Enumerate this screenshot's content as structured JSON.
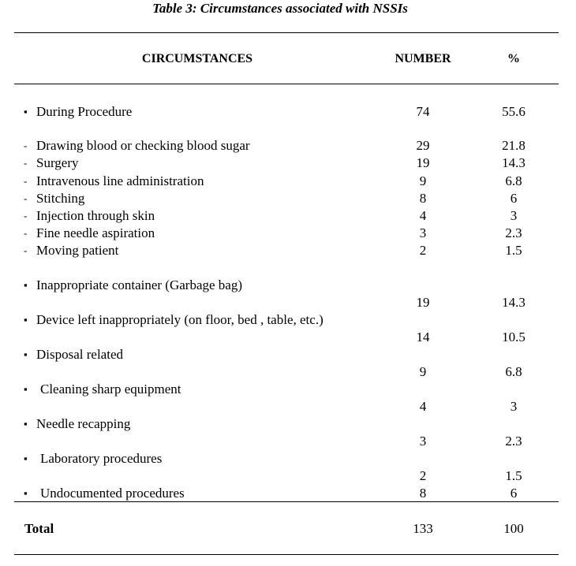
{
  "title": "Table 3:  Circumstances associated with NSSIs",
  "table": {
    "header": [
      "CIRCUMSTANCES",
      "NUMBER",
      "%"
    ],
    "rows": [
      {
        "marker": "▪",
        "label": "During Procedure",
        "number": "74",
        "percent": "55.6"
      },
      {
        "marker": "-",
        "label": "Drawing blood or checking blood sugar",
        "number": "29",
        "percent": "21.8"
      },
      {
        "marker": "-",
        "label": "Surgery",
        "number": "19",
        "percent": "14.3"
      },
      {
        "marker": "-",
        "label": "Intravenous line administration",
        "number": "9",
        "percent": "6.8"
      },
      {
        "marker": "-",
        "label": "Stitching",
        "number": "8",
        "percent": "6"
      },
      {
        "marker": "-",
        "label": "Injection through skin",
        "number": "4",
        "percent": "3"
      },
      {
        "marker": "-",
        "label": "Fine needle aspiration",
        "number": "3",
        "percent": "2.3"
      },
      {
        "marker": "-",
        "label": "Moving patient",
        "number": "2",
        "percent": "1.5"
      },
      {
        "marker": "▪",
        "label": "Inappropriate container (Garbage bag)",
        "number": "19",
        "percent": "14.3"
      },
      {
        "marker": "▪",
        "label": "Device left inappropriately (on floor, bed , table, etc.)",
        "number": "14",
        "percent": "10.5"
      },
      {
        "marker": "▪",
        "label": "Disposal related",
        "number": "9",
        "percent": "6.8"
      },
      {
        "marker": "▪",
        "label": "Cleaning sharp equipment",
        "number": "4",
        "percent": "3"
      },
      {
        "marker": "▪",
        "label": "Needle recapping",
        "number": "3",
        "percent": "2.3"
      },
      {
        "marker": "▪",
        "label": "Laboratory procedures",
        "number": "2",
        "percent": "1.5"
      },
      {
        "marker": "▪",
        "label": "Undocumented procedures",
        "number": "8",
        "percent": "6"
      }
    ],
    "total": {
      "label": "Total",
      "number": "133",
      "percent": "100"
    }
  }
}
